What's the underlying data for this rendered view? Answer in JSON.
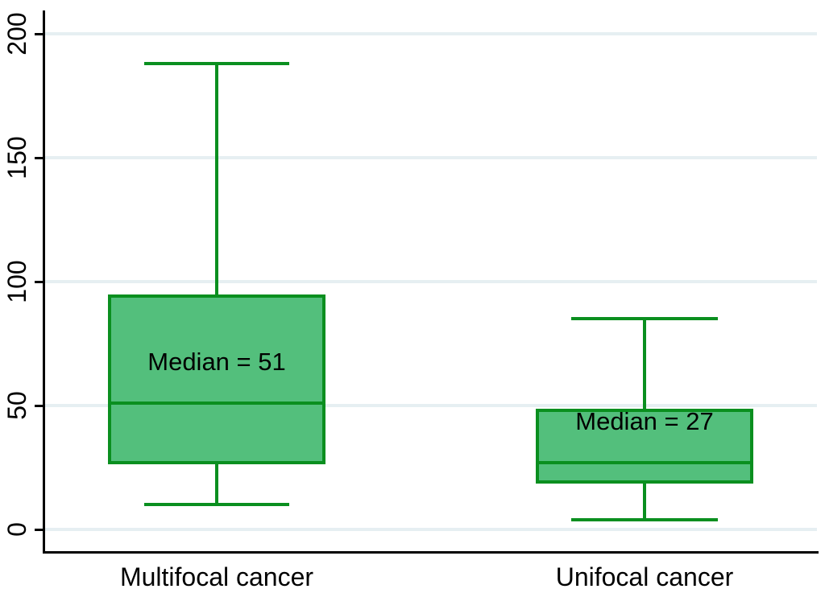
{
  "colors": {
    "background": "#ffffff",
    "box_fill": "#53bf7c",
    "box_border": "#0a8f1f",
    "gridline": "#e6eff2",
    "axis": "#000000",
    "text": "#000000"
  },
  "chart_data": {
    "type": "box",
    "orientation": "vertical",
    "title": "",
    "xlabel": "",
    "ylabel": "",
    "grid": "horizontal",
    "legend": "none",
    "ylim": [
      0,
      200
    ],
    "yticks": [
      0,
      50,
      100,
      150,
      200
    ],
    "ytick_labels": [
      "0",
      "50",
      "100",
      "150",
      "200"
    ],
    "categories": [
      "Multifocal cancer",
      "Unifocal cancer"
    ],
    "series": [
      {
        "category": "Multifocal cancer",
        "min": 10,
        "q1": 27,
        "median": 51,
        "q3": 94,
        "max": 188,
        "annotation": "Median = 51"
      },
      {
        "category": "Unifocal cancer",
        "min": 4,
        "q1": 19,
        "median": 27,
        "q3": 48,
        "max": 85,
        "annotation": "Median = 27"
      }
    ]
  }
}
